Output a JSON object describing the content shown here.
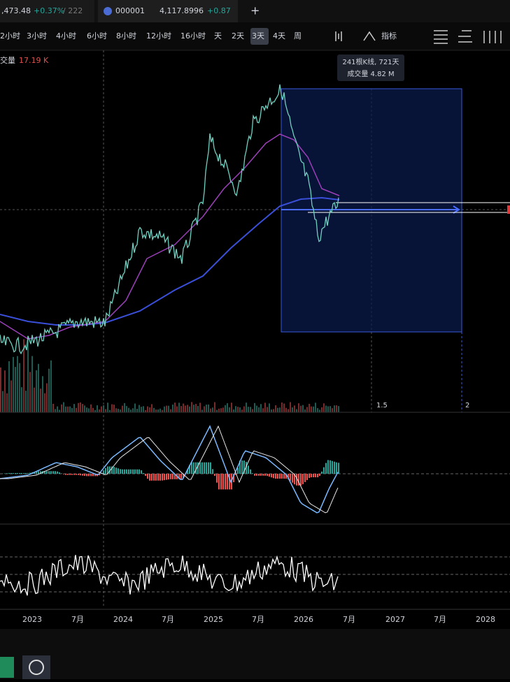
{
  "tabs": [
    {
      "price": ",473.48",
      "change": "+0.37%",
      "extra": "/ 222"
    },
    {
      "symbol": "000001",
      "price": "4,117.8996",
      "change": "+0.87"
    }
  ],
  "new_tab": "+",
  "toolbar": {
    "intervals": [
      "2小时",
      "3小时",
      "4小时",
      "6小时",
      "8小时",
      "12小时",
      "16小时",
      "天",
      "2天",
      "3天",
      "4天",
      "周"
    ],
    "active": "3天",
    "indicators": "指标"
  },
  "legend": {
    "name": "交量",
    "value": "17.19 K"
  },
  "tooltip": {
    "line1": "241根K线, 721天",
    "line2": "成交量 4.82 M"
  },
  "fib_labels": [
    "1.5",
    "2"
  ],
  "x_axis": [
    "2023",
    "7月",
    "2024",
    "7月",
    "2025",
    "7月",
    "2026",
    "7月",
    "2027",
    "7月",
    "2028"
  ]
}
